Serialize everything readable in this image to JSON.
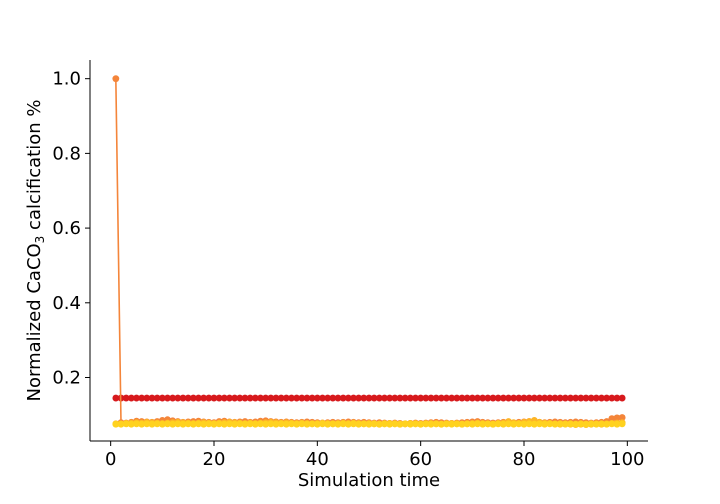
{
  "chart_data": {
    "type": "line",
    "xlabel": "Simulation time",
    "ylabel_prefix": "Normalized CaCO",
    "ylabel_sub": "3",
    "ylabel_suffix": " calcification %",
    "xlim": [
      -4,
      104
    ],
    "ylim": [
      0.03,
      1.05
    ],
    "xticks": [
      0,
      20,
      40,
      60,
      80,
      100
    ],
    "yticks": [
      0.2,
      0.4,
      0.6,
      0.8,
      1.0
    ],
    "ytick_labels": [
      "0.2",
      "0.4",
      "0.6",
      "0.8",
      "1.0"
    ],
    "grid": false,
    "x_start": 1,
    "x_end": 99,
    "series": [
      {
        "color": "#d7191c",
        "values": [
          0.145
        ],
        "constant": true
      },
      {
        "color": "#f4853a",
        "values": [
          1.0,
          0.079,
          0.078,
          0.08,
          0.083,
          0.082,
          0.081,
          0.08,
          0.082,
          0.085,
          0.087,
          0.084,
          0.082,
          0.08,
          0.081,
          0.082,
          0.083,
          0.081,
          0.08,
          0.079,
          0.082,
          0.083,
          0.081,
          0.08,
          0.081,
          0.082,
          0.08,
          0.081,
          0.083,
          0.084,
          0.082,
          0.081,
          0.08,
          0.081,
          0.08,
          0.079,
          0.08,
          0.081,
          0.08,
          0.079,
          0.078,
          0.079,
          0.08,
          0.079,
          0.08,
          0.081,
          0.08,
          0.079,
          0.08,
          0.079,
          0.078,
          0.079,
          0.078,
          0.077,
          0.078,
          0.077,
          0.076,
          0.077,
          0.078,
          0.077,
          0.078,
          0.079,
          0.08,
          0.079,
          0.078,
          0.077,
          0.078,
          0.079,
          0.08,
          0.081,
          0.082,
          0.08,
          0.079,
          0.078,
          0.079,
          0.08,
          0.079,
          0.078,
          0.08,
          0.081,
          0.082,
          0.081,
          0.08,
          0.079,
          0.08,
          0.081,
          0.08,
          0.079,
          0.08,
          0.081,
          0.08,
          0.079,
          0.078,
          0.079,
          0.08,
          0.082,
          0.09,
          0.092,
          0.093
        ]
      },
      {
        "color": "#fdb526",
        "values": [
          0.076,
          0.076,
          0.077,
          0.078,
          0.079,
          0.078,
          0.08,
          0.079,
          0.078,
          0.077,
          0.078,
          0.079,
          0.08,
          0.079,
          0.078,
          0.077,
          0.078,
          0.079,
          0.078,
          0.077,
          0.078,
          0.079,
          0.08,
          0.079,
          0.078,
          0.077,
          0.078,
          0.077,
          0.078,
          0.079,
          0.08,
          0.079,
          0.078,
          0.079,
          0.078,
          0.077,
          0.078,
          0.077,
          0.076,
          0.077,
          0.078,
          0.077,
          0.076,
          0.077,
          0.078,
          0.077,
          0.078,
          0.077,
          0.076,
          0.077,
          0.076,
          0.075,
          0.076,
          0.077,
          0.076,
          0.075,
          0.076,
          0.077,
          0.076,
          0.075,
          0.076,
          0.077,
          0.076,
          0.075,
          0.076,
          0.077,
          0.076,
          0.075,
          0.076,
          0.077,
          0.078,
          0.077,
          0.076,
          0.075,
          0.077,
          0.078,
          0.082,
          0.079,
          0.077,
          0.08,
          0.082,
          0.085,
          0.08,
          0.078,
          0.077,
          0.076,
          0.075,
          0.076,
          0.075,
          0.074,
          0.075,
          0.074,
          0.075,
          0.076,
          0.075,
          0.076,
          0.077,
          0.078,
          0.079
        ]
      },
      {
        "color": "#ffd21f",
        "values": [
          0.075,
          0.075,
          0.076,
          0.075,
          0.076,
          0.075,
          0.076,
          0.075,
          0.076,
          0.075,
          0.076,
          0.075,
          0.076,
          0.075,
          0.076,
          0.075,
          0.076,
          0.075,
          0.076,
          0.075,
          0.076,
          0.075,
          0.076,
          0.075,
          0.076,
          0.075,
          0.076,
          0.075,
          0.076,
          0.075,
          0.076,
          0.075,
          0.076,
          0.075,
          0.076,
          0.075,
          0.076,
          0.075,
          0.076,
          0.075,
          0.076,
          0.075,
          0.076,
          0.075,
          0.076,
          0.075,
          0.076,
          0.075,
          0.076,
          0.075,
          0.076,
          0.075,
          0.076,
          0.075,
          0.076,
          0.075,
          0.076,
          0.075,
          0.076,
          0.075,
          0.076,
          0.075,
          0.076,
          0.075,
          0.076,
          0.075,
          0.076,
          0.075,
          0.076,
          0.075,
          0.076,
          0.075,
          0.076,
          0.075,
          0.076,
          0.075,
          0.076,
          0.075,
          0.076,
          0.075,
          0.076,
          0.075,
          0.076,
          0.075,
          0.076,
          0.075,
          0.076,
          0.075,
          0.076,
          0.075,
          0.076,
          0.075,
          0.076,
          0.075,
          0.076,
          0.075,
          0.076,
          0.075,
          0.076
        ]
      }
    ]
  }
}
